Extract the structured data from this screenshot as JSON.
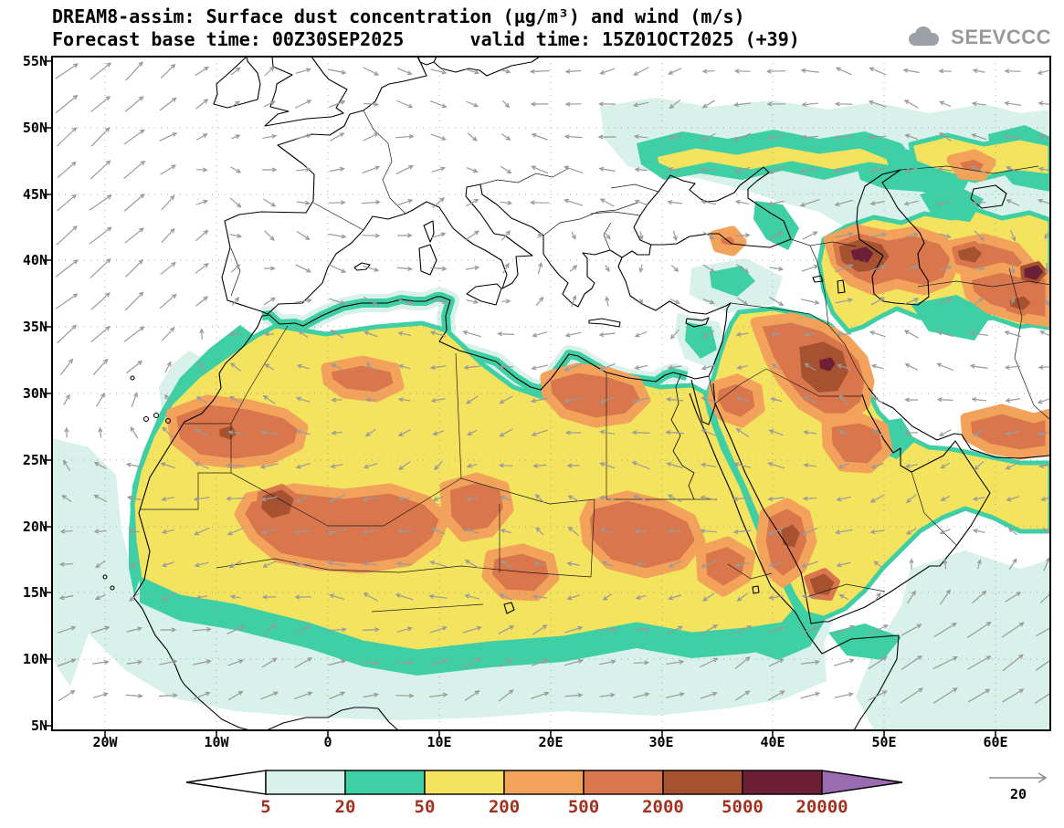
{
  "header": {
    "title_line1": "DREAM8-assim: Surface dust concentration (µg/m³) and wind (m/s)",
    "title_line2": "Forecast base time: 00Z30SEP2025      valid time: 15Z01OCT2025 (+39)"
  },
  "logo": {
    "text": "SEEVCCC"
  },
  "axes": {
    "lat": [
      "55N",
      "50N",
      "45N",
      "40N",
      "35N",
      "30N",
      "25N",
      "20N",
      "15N",
      "10N",
      "5N"
    ],
    "lon": [
      "20W",
      "10W",
      "0",
      "10E",
      "20E",
      "30E",
      "40E",
      "50E",
      "60E"
    ]
  },
  "legend": {
    "ticks": [
      "5",
      "20",
      "50",
      "200",
      "500",
      "2000",
      "5000",
      "20000"
    ],
    "colors": {
      "below5": "#ffffff",
      "c5_20": "#d8f1ea",
      "c20_50": "#3fcfa4",
      "c50_200": "#f3e35f",
      "c200_500": "#f3a25c",
      "c500_2000": "#d9764c",
      "c2000_5000": "#a6512f",
      "c5000_20000": "#6e1f38",
      "above20000": "#9a6bb0"
    },
    "wind_reference_label": "20"
  }
}
